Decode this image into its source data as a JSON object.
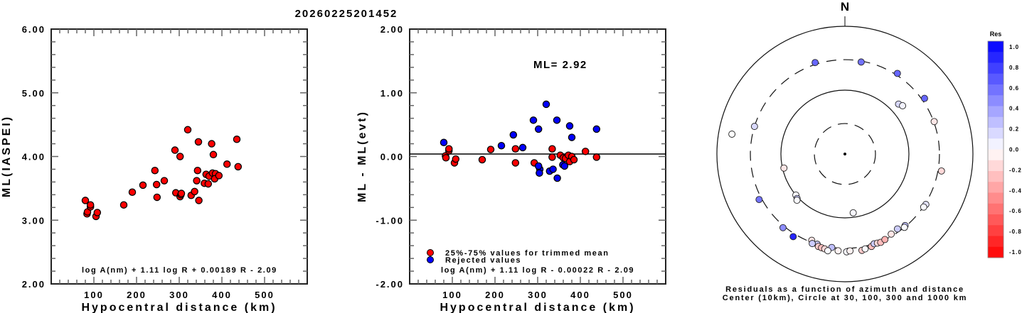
{
  "title": "20260225201452",
  "chart_data": [
    {
      "type": "scatter",
      "name": "magnitude-vs-distance",
      "xlabel": "Hypocentral distance (km)",
      "ylabel": "ML(IASPEI)",
      "xlim": [
        0,
        600
      ],
      "ylim": [
        2.0,
        6.0
      ],
      "xticks": [
        100,
        200,
        300,
        400,
        500
      ],
      "xtick_labels": [
        "100",
        "200",
        "300",
        "400",
        "500"
      ],
      "yticks": [
        2.0,
        3.0,
        4.0,
        5.0,
        6.0
      ],
      "ytick_labels": [
        "2.00",
        "3.00",
        "4.00",
        "5.00",
        "6.00"
      ],
      "formula": "log A(nm) + 1.11 log R + 0.00189 R - 2.09",
      "point_color": "#ff0000",
      "points": [
        [
          80,
          3.31
        ],
        [
          84,
          3.1
        ],
        [
          85,
          3.13
        ],
        [
          92,
          3.21
        ],
        [
          92,
          3.24
        ],
        [
          105,
          3.06
        ],
        [
          108,
          3.12
        ],
        [
          170,
          3.24
        ],
        [
          190,
          3.44
        ],
        [
          215,
          3.55
        ],
        [
          243,
          3.78
        ],
        [
          247,
          3.56
        ],
        [
          248,
          3.36
        ],
        [
          265,
          3.62
        ],
        [
          292,
          3.43
        ],
        [
          302,
          3.37
        ],
        [
          304,
          3.4
        ],
        [
          305,
          3.42
        ],
        [
          290,
          4.1
        ],
        [
          302,
          4.0
        ],
        [
          320,
          4.42
        ],
        [
          328,
          3.39
        ],
        [
          336,
          3.45
        ],
        [
          341,
          3.62
        ],
        [
          343,
          3.78
        ],
        [
          346,
          3.31
        ],
        [
          345,
          4.23
        ],
        [
          359,
          3.58
        ],
        [
          363,
          3.72
        ],
        [
          368,
          3.57
        ],
        [
          370,
          3.69
        ],
        [
          378,
          3.74
        ],
        [
          385,
          3.73
        ],
        [
          383,
          3.65
        ],
        [
          393,
          3.7
        ],
        [
          376,
          4.2
        ],
        [
          380,
          4.03
        ],
        [
          412,
          3.88
        ],
        [
          438,
          3.84
        ],
        [
          435,
          4.27
        ]
      ]
    },
    {
      "type": "scatter",
      "name": "residual-vs-distance",
      "xlabel": "Hypocentral distance (km)",
      "ylabel": "ML - ML(evt)",
      "xlim": [
        0,
        600
      ],
      "ylim": [
        -2.0,
        2.0
      ],
      "xticks": [
        100,
        200,
        300,
        400,
        500
      ],
      "xtick_labels": [
        "100",
        "200",
        "300",
        "400",
        "500"
      ],
      "yticks": [
        -2.0,
        -1.0,
        0.0,
        1.0,
        2.0
      ],
      "ytick_labels": [
        "-2.00",
        "-1.00",
        "0.00",
        "1.00",
        "2.00"
      ],
      "annotation": "ML= 2.92",
      "formula": "log A(nm) + 1.11 log R - 0.00022 R - 2.09",
      "legend": [
        {
          "label": "25%-75% values for trimmed mean",
          "color": "#ff0000"
        },
        {
          "label": "Rejected values",
          "color": "#0000ff"
        }
      ],
      "legend_position": "bottom-left",
      "series": [
        {
          "name": "25%-75% values for trimmed mean",
          "color": "#ff0000",
          "points": [
            [
              84,
              0.01
            ],
            [
              85,
              -0.02
            ],
            [
              92,
              0.09
            ],
            [
              92,
              0.12
            ],
            [
              105,
              -0.1
            ],
            [
              108,
              -0.04
            ],
            [
              170,
              -0.05
            ],
            [
              190,
              0.11
            ],
            [
              248,
              0.12
            ],
            [
              248,
              -0.1
            ],
            [
              292,
              -0.1
            ],
            [
              334,
              0.12
            ],
            [
              334,
              -0.01
            ],
            [
              353,
              0.02
            ],
            [
              360,
              -0.02
            ],
            [
              365,
              -0.03
            ],
            [
              372,
              0.02
            ],
            [
              375,
              -0.08
            ],
            [
              380,
              0.0
            ],
            [
              385,
              -0.05
            ],
            [
              412,
              0.08
            ],
            [
              438,
              -0.01
            ]
          ]
        },
        {
          "name": "Rejected values",
          "color": "#0000ff",
          "points": [
            [
              80,
              0.22
            ],
            [
              215,
              0.17
            ],
            [
              243,
              0.34
            ],
            [
              265,
              0.14
            ],
            [
              290,
              0.57
            ],
            [
              302,
              0.43
            ],
            [
              320,
              0.82
            ],
            [
              345,
              0.57
            ],
            [
              375,
              0.48
            ],
            [
              380,
              0.3
            ],
            [
              438,
              0.43
            ],
            [
              305,
              -0.2
            ],
            [
              304,
              -0.26
            ],
            [
              328,
              -0.23
            ],
            [
              336,
              -0.2
            ],
            [
              346,
              -0.34
            ],
            [
              359,
              -0.13
            ],
            [
              363,
              -0.15
            ],
            [
              302,
              -0.15
            ]
          ]
        }
      ]
    },
    {
      "type": "scatter",
      "name": "residual-polar-map",
      "title": "N",
      "caption_lines": [
        "Residuals as a function of azimuth and distance",
        "Center (10km), Circle at 30, 100, 300 and 1000 km"
      ],
      "rings_km": [
        30,
        100,
        300,
        1000
      ],
      "ring_styles": [
        "dashed",
        "solid",
        "dashed",
        "solid"
      ],
      "colorbar": {
        "title": "Res",
        "ticks": [
          "1.0",
          "0.8",
          "0.6",
          "0.4",
          "0.2",
          "0.0",
          "-0.2",
          "-0.4",
          "-0.6",
          "-0.8",
          "-1.0"
        ],
        "range": [
          -1.0,
          1.0
        ],
        "high_color": "#0000ff",
        "mid_color": "#ffffff",
        "low_color": "#ff0000"
      },
      "points_az_dist_res": [
        [
          -18,
          320,
          0.6
        ],
        [
          10,
          290,
          0.55
        ],
        [
          33,
          320,
          0.6
        ],
        [
          55,
          330,
          0.6
        ],
        [
          70,
          305,
          -0.1
        ],
        [
          47,
          140,
          0.15
        ],
        [
          50,
          150,
          0.05
        ],
        [
          -80,
          620,
          0.0
        ],
        [
          -73,
          300,
          0.15
        ],
        [
          -103,
          95,
          -0.1
        ],
        [
          -130,
          100,
          0.02
        ],
        [
          -133,
          105,
          0.2
        ],
        [
          -134,
          110,
          0.02
        ],
        [
          172,
          85,
          0.03
        ],
        [
          100,
          340,
          -0.15
        ],
        [
          122,
          310,
          0.1
        ],
        [
          124,
          305,
          0.02
        ],
        [
          -118,
          330,
          0.55
        ],
        [
          -140,
          320,
          0.45
        ],
        [
          -148,
          335,
          0.85
        ],
        [
          -159,
          280,
          -0.1
        ],
        [
          -163,
          300,
          0.2
        ],
        [
          -160,
          310,
          0.2
        ],
        [
          -164,
          320,
          -0.2
        ],
        [
          -166,
          325,
          -0.25
        ],
        [
          -168,
          330,
          -0.15
        ],
        [
          -172,
          300,
          0.25
        ],
        [
          -176,
          330,
          -0.05
        ],
        [
          -170,
          345,
          0.02
        ],
        [
          179,
          340,
          0.03
        ],
        [
          177,
          330,
          -0.05
        ],
        [
          170,
          340,
          -0.2
        ],
        [
          168,
          330,
          0.02
        ],
        [
          164,
          320,
          -0.25
        ],
        [
          162,
          300,
          0.2
        ],
        [
          160,
          305,
          -0.15
        ],
        [
          158,
          310,
          -0.25
        ],
        [
          155,
          300,
          -0.3
        ],
        [
          150,
          280,
          -0.1
        ],
        [
          145,
          270,
          0.2
        ],
        [
          140,
          290,
          0.25
        ],
        [
          141,
          300,
          0.02
        ]
      ]
    }
  ]
}
